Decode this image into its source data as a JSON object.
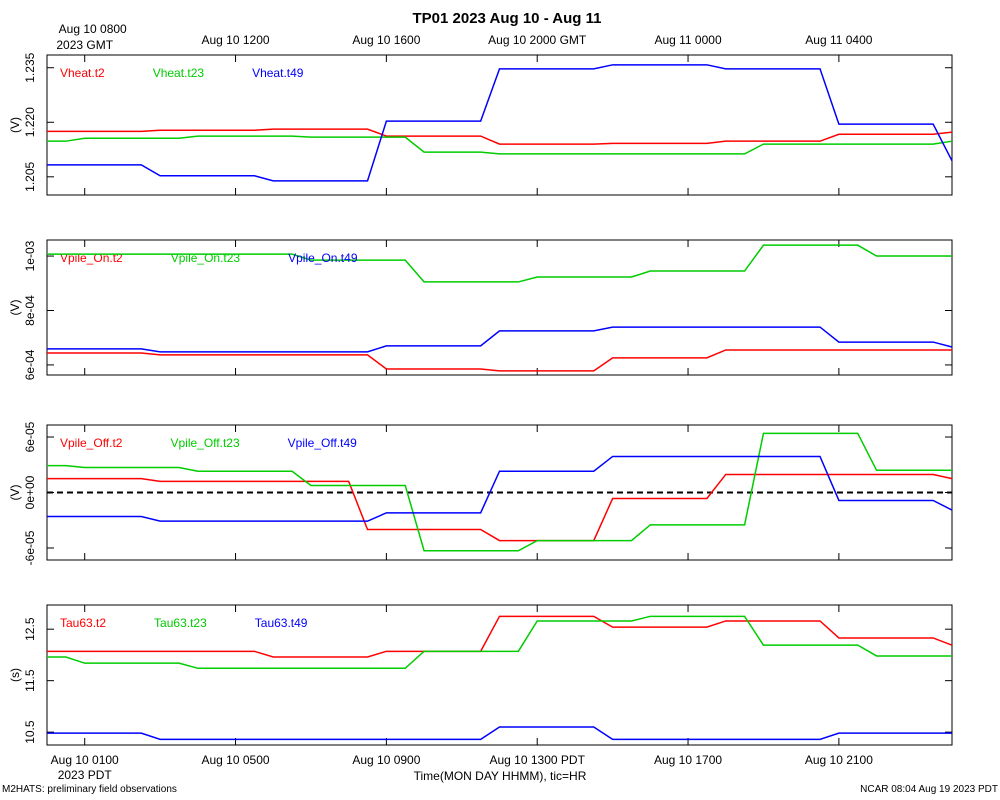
{
  "title": "TP01 2023 Aug 10 - Aug 11",
  "xlabel": "Time(MON DAY HHMM), tic=HR",
  "footer_left": "M2HATS: preliminary field observations",
  "footer_right": "NCAR 08:04 Aug 19 2023 PDT",
  "chart_data": [
    {
      "type": "line",
      "ylabel": "(V)",
      "x": [
        0,
        0.5,
        1,
        1.5,
        2,
        2.5,
        3,
        3.5,
        4,
        4.5,
        5,
        5.5,
        6,
        6.5,
        7,
        7.5,
        8,
        8.5,
        9,
        9.5,
        10,
        10.5,
        11,
        11.5,
        12,
        12.5,
        13,
        13.5,
        14,
        14.5,
        15,
        15.5,
        16,
        16.5,
        17,
        17.5,
        18,
        18.5,
        19,
        19.5,
        20,
        20.5,
        21,
        21.5,
        22,
        22.5,
        23,
        23.5,
        24
      ],
      "xlim": [
        0,
        24
      ],
      "x2ticks": [
        {
          "value": 1,
          "label": "Aug 10 0800"
        },
        {
          "value": 5,
          "label": "Aug 10 1200"
        },
        {
          "value": 9,
          "label": "Aug 10 1600"
        },
        {
          "value": 13,
          "label": "Aug 10 2000 GMT"
        },
        {
          "value": 17,
          "label": "Aug 11 0000"
        },
        {
          "value": 21,
          "label": "Aug 11 0400"
        }
      ],
      "x2_sublabel": "2023 GMT",
      "ylim": [
        1.2,
        1.2385
      ],
      "yticks": [
        1.205,
        {
          "value": 1.22,
          "label": "1.220"
        },
        1.235
      ],
      "series": [
        {
          "name": "Vheat.t2",
          "color": "#ff0000",
          "values": [
            1.2175,
            1.2175,
            1.2175,
            1.2175,
            1.2175,
            1.2175,
            1.2178,
            1.2178,
            1.2178,
            1.2178,
            1.2178,
            1.2178,
            1.2181,
            1.2181,
            1.2181,
            1.2181,
            1.2181,
            1.2181,
            1.2162,
            1.2162,
            1.2162,
            1.2162,
            1.2162,
            1.2162,
            1.214,
            1.214,
            1.214,
            1.214,
            1.214,
            1.214,
            1.2142,
            1.2142,
            1.2142,
            1.2142,
            1.2142,
            1.2142,
            1.2148,
            1.2148,
            1.2148,
            1.2148,
            1.2148,
            1.2148,
            1.2167,
            1.2167,
            1.2167,
            1.2167,
            1.2167,
            1.2167,
            1.2173
          ]
        },
        {
          "name": "Vheat.t23",
          "color": "#00cc00",
          "values": [
            1.2148,
            1.2148,
            1.2156,
            1.2156,
            1.2156,
            1.2156,
            1.2156,
            1.2156,
            1.2162,
            1.2162,
            1.2162,
            1.2162,
            1.2162,
            1.2162,
            1.2159,
            1.2159,
            1.2159,
            1.2159,
            1.2159,
            1.2159,
            1.2118,
            1.2118,
            1.2118,
            1.2118,
            1.2113,
            1.2113,
            1.2113,
            1.2113,
            1.2113,
            1.2113,
            1.2113,
            1.2113,
            1.2113,
            1.2113,
            1.2113,
            1.2113,
            1.2113,
            1.2113,
            1.214,
            1.214,
            1.214,
            1.214,
            1.214,
            1.214,
            1.214,
            1.214,
            1.214,
            1.214,
            1.2148
          ]
        },
        {
          "name": "Vheat.t49",
          "color": "#0000ff",
          "values": [
            1.2083,
            1.2083,
            1.2083,
            1.2083,
            1.2083,
            1.2083,
            1.2053,
            1.2053,
            1.2053,
            1.2053,
            1.2053,
            1.2053,
            1.2039,
            1.2039,
            1.2039,
            1.2039,
            1.2039,
            1.2039,
            1.2203,
            1.2203,
            1.2203,
            1.2203,
            1.2203,
            1.2203,
            1.2347,
            1.2347,
            1.2347,
            1.2347,
            1.2347,
            1.2347,
            1.2358,
            1.2358,
            1.2358,
            1.2358,
            1.2358,
            1.2358,
            1.2347,
            1.2347,
            1.2347,
            1.2347,
            1.2347,
            1.2347,
            1.2195,
            1.2195,
            1.2195,
            1.2195,
            1.2195,
            1.2195,
            1.2094
          ]
        }
      ]
    },
    {
      "type": "line",
      "ylabel": "(V)",
      "x": [
        0,
        0.5,
        1,
        1.5,
        2,
        2.5,
        3,
        3.5,
        4,
        4.5,
        5,
        5.5,
        6,
        6.5,
        7,
        7.5,
        8,
        8.5,
        9,
        9.5,
        10,
        10.5,
        11,
        11.5,
        12,
        12.5,
        13,
        13.5,
        14,
        14.5,
        15,
        15.5,
        16,
        16.5,
        17,
        17.5,
        18,
        18.5,
        19,
        19.5,
        20,
        20.5,
        21,
        21.5,
        22,
        22.5,
        23,
        23.5,
        24
      ],
      "xlim": [
        0,
        24
      ],
      "ylim": [
        0.000563,
        0.001059
      ],
      "yticks": [
        {
          "value": 0.0006,
          "label": "6e-04"
        },
        {
          "value": 0.0008,
          "label": "8e-04"
        },
        {
          "value": 0.001,
          "label": "1e-03"
        }
      ],
      "series": [
        {
          "name": "Vpile_On.t2",
          "color": "#ff0000",
          "values": [
            0.000644,
            0.000644,
            0.000644,
            0.000644,
            0.000644,
            0.000644,
            0.000637,
            0.000637,
            0.000637,
            0.000637,
            0.000637,
            0.000637,
            0.000637,
            0.000637,
            0.000637,
            0.000637,
            0.000637,
            0.000637,
            0.000585,
            0.000585,
            0.000585,
            0.000585,
            0.000585,
            0.000585,
            0.000578,
            0.000578,
            0.000578,
            0.000578,
            0.000578,
            0.000578,
            0.000626,
            0.000626,
            0.000626,
            0.000626,
            0.000626,
            0.000626,
            0.000655,
            0.000655,
            0.000655,
            0.000655,
            0.000655,
            0.000655,
            0.000655,
            0.000655,
            0.000655,
            0.000655,
            0.000655,
            0.000655,
            0.000655
          ]
        },
        {
          "name": "Vpile_On.t23",
          "color": "#00cc00",
          "values": [
            0.001007,
            0.001007,
            0.001007,
            0.001007,
            0.001007,
            0.001007,
            0.001007,
            0.001007,
            0.001007,
            0.001007,
            0.001007,
            0.001007,
            0.001007,
            0.001007,
            0.000985,
            0.000985,
            0.000985,
            0.000985,
            0.000985,
            0.000985,
            0.000905,
            0.000905,
            0.000905,
            0.000905,
            0.000905,
            0.000905,
            0.000923,
            0.000923,
            0.000923,
            0.000923,
            0.000923,
            0.000923,
            0.000945,
            0.000945,
            0.000945,
            0.000945,
            0.000945,
            0.000945,
            0.00104,
            0.00104,
            0.00104,
            0.00104,
            0.00104,
            0.00104,
            0.001,
            0.001,
            0.001,
            0.001,
            0.001
          ]
        },
        {
          "name": "Vpile_On.t49",
          "color": "#0000ff",
          "values": [
            0.000659,
            0.000659,
            0.000659,
            0.000659,
            0.000659,
            0.000659,
            0.000648,
            0.000648,
            0.000648,
            0.000648,
            0.000648,
            0.000648,
            0.000648,
            0.000648,
            0.000648,
            0.000648,
            0.000648,
            0.000648,
            0.00067,
            0.00067,
            0.00067,
            0.00067,
            0.00067,
            0.00067,
            0.000725,
            0.000725,
            0.000725,
            0.000725,
            0.000725,
            0.000725,
            0.000739,
            0.000739,
            0.000739,
            0.000739,
            0.000739,
            0.000739,
            0.000739,
            0.000739,
            0.000739,
            0.000739,
            0.000739,
            0.000739,
            0.000684,
            0.000684,
            0.000684,
            0.000684,
            0.000684,
            0.000684,
            0.000666
          ]
        }
      ]
    },
    {
      "type": "line",
      "ylabel": "(V)",
      "zero_line": true,
      "x": [
        0,
        0.5,
        1,
        1.5,
        2,
        2.5,
        3,
        3.5,
        4,
        4.5,
        5,
        5.5,
        6,
        6.5,
        7,
        7.5,
        8,
        8.5,
        9,
        9.5,
        10,
        10.5,
        11,
        11.5,
        12,
        12.5,
        13,
        13.5,
        14,
        14.5,
        15,
        15.5,
        16,
        16.5,
        17,
        17.5,
        18,
        18.5,
        19,
        19.5,
        20,
        20.5,
        21,
        21.5,
        22,
        22.5,
        23,
        23.5,
        24
      ],
      "xlim": [
        0,
        24
      ],
      "ylim": [
        -7.3e-05,
        7.3e-05
      ],
      "yticks": [
        {
          "value": -6e-05,
          "label": "-6e-05"
        },
        {
          "value": 0,
          "label": "0e+00"
        },
        {
          "value": 6e-05,
          "label": "6e-05"
        }
      ],
      "series": [
        {
          "name": "Vpile_Off.t2",
          "color": "#ff0000",
          "values": [
            1.5e-05,
            1.5e-05,
            1.5e-05,
            1.5e-05,
            1.5e-05,
            1.5e-05,
            1.2e-05,
            1.2e-05,
            1.2e-05,
            1.2e-05,
            1.2e-05,
            1.2e-05,
            1.2e-05,
            1.2e-05,
            1.2e-05,
            1.2e-05,
            1.2e-05,
            -4e-05,
            -4e-05,
            -4e-05,
            -4e-05,
            -4e-05,
            -4e-05,
            -4e-05,
            -5.2e-05,
            -5.2e-05,
            -5.2e-05,
            -5.2e-05,
            -5.2e-05,
            -5.2e-05,
            -6.5e-06,
            -6.5e-06,
            -6.5e-06,
            -6.5e-06,
            -6.5e-06,
            -6.5e-06,
            1.95e-05,
            1.95e-05,
            1.95e-05,
            1.95e-05,
            1.95e-05,
            1.95e-05,
            1.95e-05,
            1.95e-05,
            1.95e-05,
            1.95e-05,
            1.95e-05,
            1.95e-05,
            1.5e-05
          ]
        },
        {
          "name": "Vpile_Off.t23",
          "color": "#00cc00",
          "values": [
            2.9e-05,
            2.9e-05,
            2.7e-05,
            2.7e-05,
            2.7e-05,
            2.7e-05,
            2.7e-05,
            2.7e-05,
            2.3e-05,
            2.3e-05,
            2.3e-05,
            2.3e-05,
            2.3e-05,
            2.3e-05,
            7.6e-06,
            7.6e-06,
            7.6e-06,
            7.6e-06,
            7.6e-06,
            7.6e-06,
            -6.3e-05,
            -6.3e-05,
            -6.3e-05,
            -6.3e-05,
            -6.3e-05,
            -6.3e-05,
            -5.2e-05,
            -5.2e-05,
            -5.2e-05,
            -5.2e-05,
            -5.2e-05,
            -5.2e-05,
            -3.5e-05,
            -3.5e-05,
            -3.5e-05,
            -3.5e-05,
            -3.5e-05,
            -3.5e-05,
            6.4e-05,
            6.4e-05,
            6.4e-05,
            6.4e-05,
            6.4e-05,
            6.4e-05,
            2.4e-05,
            2.4e-05,
            2.4e-05,
            2.4e-05,
            2.4e-05
          ]
        },
        {
          "name": "Vpile_Off.t49",
          "color": "#0000ff",
          "values": [
            -2.6e-05,
            -2.6e-05,
            -2.6e-05,
            -2.6e-05,
            -2.6e-05,
            -2.6e-05,
            -3.1e-05,
            -3.1e-05,
            -3.1e-05,
            -3.1e-05,
            -3.1e-05,
            -3.1e-05,
            -3.1e-05,
            -3.1e-05,
            -3.1e-05,
            -3.1e-05,
            -3.1e-05,
            -3.1e-05,
            -2.2e-05,
            -2.2e-05,
            -2.2e-05,
            -2.2e-05,
            -2.2e-05,
            -2.2e-05,
            2.3e-05,
            2.3e-05,
            2.3e-05,
            2.3e-05,
            2.3e-05,
            2.3e-05,
            3.9e-05,
            3.9e-05,
            3.9e-05,
            3.9e-05,
            3.9e-05,
            3.9e-05,
            3.9e-05,
            3.9e-05,
            3.9e-05,
            3.9e-05,
            3.9e-05,
            3.9e-05,
            -8.6e-06,
            -8.6e-06,
            -8.6e-06,
            -8.6e-06,
            -8.6e-06,
            -8.6e-06,
            -1.9e-05
          ]
        }
      ]
    },
    {
      "type": "line",
      "ylabel": "(s)",
      "x": [
        0,
        0.5,
        1,
        1.5,
        2,
        2.5,
        3,
        3.5,
        4,
        4.5,
        5,
        5.5,
        6,
        6.5,
        7,
        7.5,
        8,
        8.5,
        9,
        9.5,
        10,
        10.5,
        11,
        11.5,
        12,
        12.5,
        13,
        13.5,
        14,
        14.5,
        15,
        15.5,
        16,
        16.5,
        17,
        17.5,
        18,
        18.5,
        19,
        19.5,
        20,
        20.5,
        21,
        21.5,
        22,
        22.5,
        23,
        23.5,
        24
      ],
      "xlim": [
        0,
        24
      ],
      "xticks": [
        {
          "value": 1,
          "label": "Aug 10 0100"
        },
        {
          "value": 5,
          "label": "Aug 10 0500"
        },
        {
          "value": 9,
          "label": "Aug 10 0900"
        },
        {
          "value": 13,
          "label": "Aug 10 1300 PDT"
        },
        {
          "value": 17,
          "label": "Aug 10 1700"
        },
        {
          "value": 21,
          "label": "Aug 10 2100"
        }
      ],
      "x_sublabel": "2023 PDT",
      "ylim": [
        10.25,
        12.97
      ],
      "yticks": [
        10.5,
        11.5,
        12.5
      ],
      "series": [
        {
          "name": "Tau63.t2",
          "color": "#ff0000",
          "values": [
            12.07,
            12.07,
            12.07,
            12.07,
            12.07,
            12.07,
            12.07,
            12.07,
            12.07,
            12.07,
            12.07,
            12.07,
            11.96,
            11.96,
            11.96,
            11.96,
            11.96,
            11.96,
            12.07,
            12.07,
            12.07,
            12.07,
            12.07,
            12.07,
            12.75,
            12.75,
            12.75,
            12.75,
            12.75,
            12.75,
            12.54,
            12.54,
            12.54,
            12.54,
            12.54,
            12.54,
            12.66,
            12.66,
            12.66,
            12.66,
            12.66,
            12.66,
            12.33,
            12.33,
            12.33,
            12.33,
            12.33,
            12.33,
            12.19
          ]
        },
        {
          "name": "Tau63.t23",
          "color": "#00cc00",
          "values": [
            11.96,
            11.96,
            11.84,
            11.84,
            11.84,
            11.84,
            11.84,
            11.84,
            11.74,
            11.74,
            11.74,
            11.74,
            11.74,
            11.74,
            11.74,
            11.74,
            11.74,
            11.74,
            11.74,
            11.74,
            12.07,
            12.07,
            12.07,
            12.07,
            12.07,
            12.07,
            12.66,
            12.66,
            12.66,
            12.66,
            12.66,
            12.66,
            12.75,
            12.75,
            12.75,
            12.75,
            12.75,
            12.75,
            12.19,
            12.19,
            12.19,
            12.19,
            12.19,
            12.19,
            11.98,
            11.98,
            11.98,
            11.98,
            11.98
          ]
        },
        {
          "name": "Tau63.t49",
          "color": "#0000ff",
          "values": [
            10.48,
            10.48,
            10.48,
            10.48,
            10.48,
            10.48,
            10.36,
            10.36,
            10.36,
            10.36,
            10.36,
            10.36,
            10.36,
            10.36,
            10.36,
            10.36,
            10.36,
            10.36,
            10.36,
            10.36,
            10.36,
            10.36,
            10.36,
            10.36,
            10.6,
            10.6,
            10.6,
            10.6,
            10.6,
            10.6,
            10.36,
            10.36,
            10.36,
            10.36,
            10.36,
            10.36,
            10.36,
            10.36,
            10.36,
            10.36,
            10.36,
            10.36,
            10.48,
            10.48,
            10.48,
            10.48,
            10.48,
            10.48,
            10.48
          ]
        }
      ]
    }
  ]
}
